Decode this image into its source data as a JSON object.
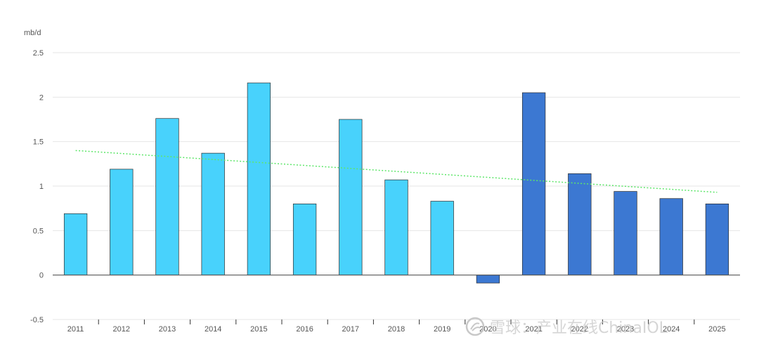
{
  "chart_data": {
    "type": "bar",
    "ylabel": "mb/d",
    "ylim": [
      -0.5,
      2.5
    ],
    "yticks": [
      "2.5",
      "2",
      "1.5",
      "1",
      "0.5",
      "0",
      "-0.5"
    ],
    "categories": [
      "2011",
      "2012",
      "2013",
      "2014",
      "2015",
      "2016",
      "2017",
      "2018",
      "2019",
      "2020",
      "2021",
      "2022",
      "2023",
      "2024",
      "2025"
    ],
    "values": [
      0.69,
      1.19,
      1.76,
      1.37,
      2.16,
      0.8,
      1.75,
      1.07,
      0.83,
      -0.09,
      2.05,
      1.14,
      0.94,
      0.86,
      0.8
    ],
    "bar_colors": [
      "#48d2fc",
      "#48d2fc",
      "#48d2fc",
      "#48d2fc",
      "#48d2fc",
      "#48d2fc",
      "#48d2fc",
      "#48d2fc",
      "#48d2fc",
      "#3c78d2",
      "#3c78d2",
      "#3c78d2",
      "#3c78d2",
      "#3c78d2",
      "#3c78d2"
    ],
    "trendline": {
      "start": 1.4,
      "end": 0.93,
      "color": "#5ee66a"
    },
    "grid": true,
    "legend": "none"
  },
  "watermark": {
    "text": "雪球：产业在线ChinaIOL"
  }
}
